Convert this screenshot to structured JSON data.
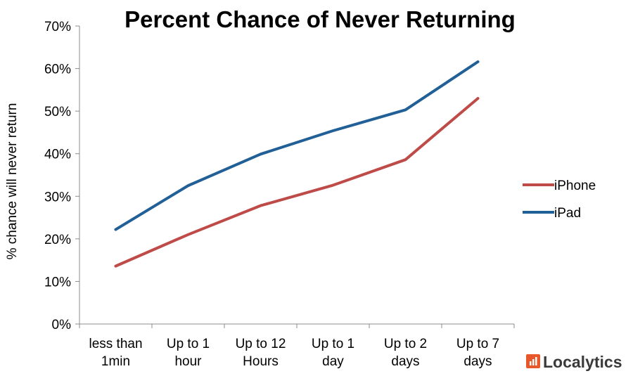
{
  "chart_data": {
    "type": "line",
    "title": "Percent Chance of Never Returning",
    "ylabel": "% chance will never return",
    "xlabel": "",
    "categories": [
      [
        "less than",
        "1min"
      ],
      [
        "Up to 1",
        "hour"
      ],
      [
        "Up to 12",
        "Hours"
      ],
      [
        "Up to 1",
        "day"
      ],
      [
        "Up to 2",
        "days"
      ],
      [
        "Up to 7",
        "days"
      ]
    ],
    "ylim": [
      0,
      70
    ],
    "yticks": [
      0,
      10,
      20,
      30,
      40,
      50,
      60,
      70
    ],
    "ytick_labels": [
      "0%",
      "10%",
      "20%",
      "30%",
      "40%",
      "50%",
      "60%",
      "70%"
    ],
    "grid": false,
    "legend_position": "right",
    "series": [
      {
        "name": "iPhone",
        "color": "#be4b48",
        "values": [
          13.6,
          21.0,
          27.8,
          32.6,
          38.6,
          53.0
        ]
      },
      {
        "name": "iPad",
        "color": "#215f97",
        "values": [
          22.2,
          32.5,
          39.9,
          45.4,
          50.3,
          61.6
        ]
      }
    ]
  },
  "branding": {
    "logo_text": "Localytics",
    "logo_icon": "localytics-logo-icon",
    "logo_color": "#e8572a"
  }
}
